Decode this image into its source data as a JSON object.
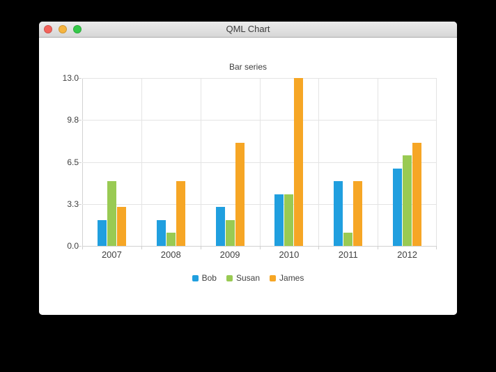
{
  "window": {
    "title": "QML Chart",
    "controls": {
      "close_color": "#f4635b",
      "minimize_color": "#f6b43e",
      "zoom_color": "#35c949"
    }
  },
  "chart_data": {
    "type": "bar",
    "title": "Bar series",
    "categories": [
      "2007",
      "2008",
      "2009",
      "2010",
      "2011",
      "2012"
    ],
    "series": [
      {
        "name": "Bob",
        "color": "#209fdf",
        "values": [
          2,
          2,
          3,
          4,
          5,
          6
        ]
      },
      {
        "name": "Susan",
        "color": "#99ca53",
        "values": [
          5,
          1,
          2,
          4,
          1,
          7
        ]
      },
      {
        "name": "James",
        "color": "#f6a625",
        "values": [
          3,
          5,
          8,
          13,
          5,
          8
        ]
      }
    ],
    "y_ticks": [
      "13.0",
      "9.8",
      "6.5",
      "3.3",
      "0.0"
    ],
    "ylim": [
      0,
      13
    ],
    "xlabel": "",
    "ylabel": "",
    "grid": true,
    "legend_position": "bottom"
  }
}
